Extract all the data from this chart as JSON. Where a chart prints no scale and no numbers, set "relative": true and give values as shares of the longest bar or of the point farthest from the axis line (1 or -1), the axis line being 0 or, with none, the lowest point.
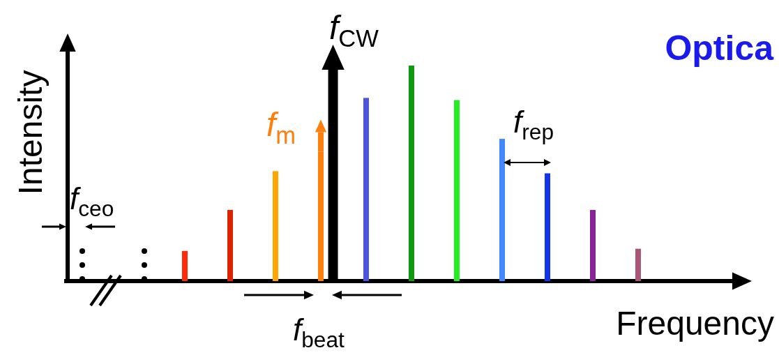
{
  "chart_data": {
    "type": "bar",
    "relative": true,
    "title": "Optica",
    "xlabel": "Frequency",
    "ylabel": "Intensity",
    "categories": [
      null,
      null,
      null,
      null,
      null,
      null,
      null,
      null,
      null,
      null,
      null
    ],
    "values": [
      0.14,
      0.33,
      0.51,
      0.6,
      0.85,
      1,
      0.84,
      0.66,
      0.5,
      0.33,
      0.15
    ],
    "colors": [
      "#ff2a0a",
      "#dd2200",
      "#ffa500",
      "#ff7f0e",
      "#4b55dd",
      "#119911",
      "#22ee22",
      "#4488ff",
      "#1133ee",
      "#882299",
      "#aa5577"
    ],
    "annotations": [
      "f$_{CW}$",
      "f$_{m}$",
      "f$_{rep}$",
      "f$_{ceo}$",
      "f$_{beat}$"
    ]
  }
}
